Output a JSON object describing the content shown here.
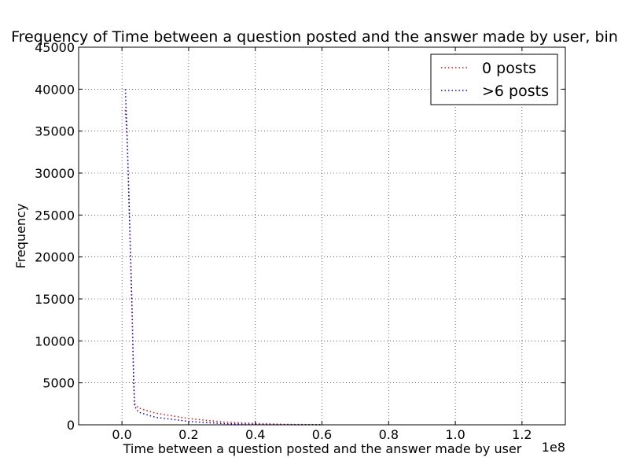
{
  "chart_data": {
    "type": "line",
    "title": "Frequency of Time between a question posted and the answer made by user, bin",
    "xlabel": "Time between a question posted and the answer made by user",
    "ylabel": "Frequency",
    "x_multiplier_label": "1e8",
    "xlim": [
      -0.13,
      1.33
    ],
    "ylim": [
      0,
      45000
    ],
    "x_ticks": [
      0.0,
      0.2,
      0.4,
      0.6,
      0.8,
      1.0,
      1.2
    ],
    "x_tick_labels": [
      "0.0",
      "0.2",
      "0.4",
      "0.6",
      "0.8",
      "1.0",
      "1.2"
    ],
    "y_ticks": [
      0,
      5000,
      10000,
      15000,
      20000,
      25000,
      30000,
      35000,
      40000,
      45000
    ],
    "y_tick_labels": [
      "0",
      "5000",
      "10000",
      "15000",
      "20000",
      "25000",
      "30000",
      "35000",
      "40000",
      "45000"
    ],
    "grid": true,
    "legend_position": "top-right",
    "series": [
      {
        "name": "0 posts",
        "color": "#ff0000",
        "line_style": "dotted",
        "points": [
          [
            0.01,
            37500
          ],
          [
            0.015,
            34500
          ],
          [
            0.02,
            28000
          ],
          [
            0.03,
            14000
          ],
          [
            0.035,
            5500
          ],
          [
            0.038,
            2500
          ],
          [
            0.05,
            2000
          ],
          [
            0.1,
            1400
          ],
          [
            0.2,
            750
          ],
          [
            0.3,
            350
          ],
          [
            0.4,
            150
          ],
          [
            0.5,
            50
          ],
          [
            0.6,
            10
          ]
        ]
      },
      {
        "name": ">6 posts",
        "color": "#0000ff",
        "line_style": "dotted",
        "points": [
          [
            0.01,
            40000
          ],
          [
            0.015,
            35000
          ],
          [
            0.02,
            28500
          ],
          [
            0.03,
            14500
          ],
          [
            0.035,
            5000
          ],
          [
            0.038,
            2200
          ],
          [
            0.05,
            1500
          ],
          [
            0.1,
            900
          ],
          [
            0.2,
            400
          ],
          [
            0.3,
            150
          ],
          [
            0.4,
            50
          ],
          [
            0.5,
            15
          ],
          [
            0.6,
            5
          ]
        ]
      }
    ]
  }
}
